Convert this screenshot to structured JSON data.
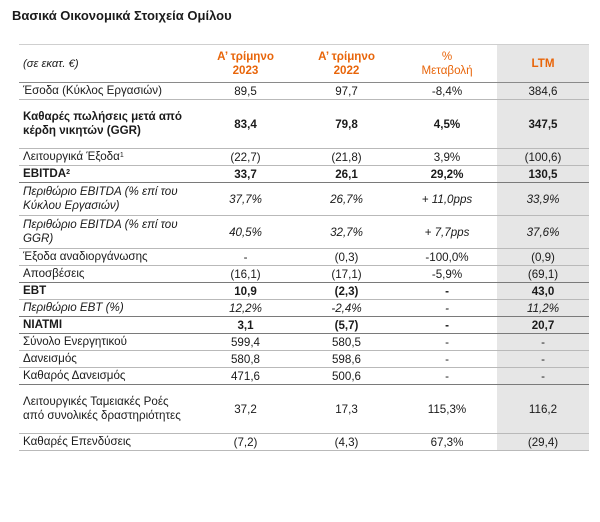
{
  "title": "Βασικά Οικονομικά Στοιχεία Ομίλου",
  "header": {
    "units": "(σε εκατ. €)",
    "col1_line1": "Α’ τρίμηνο",
    "col1_line2": "2023",
    "col2_line1": "Α’ τρίμηνο",
    "col2_line2": "2022",
    "col3_line1": "%",
    "col3_line2": "Μεταβολή",
    "col4": "LTM"
  },
  "rows": [
    {
      "label": "Έσοδα (Κύκλος Εργασιών)",
      "q1_2023": "89,5",
      "q1_2022": "97,7",
      "change": "-8,4%",
      "ltm": "384,6"
    },
    {
      "label": "Καθαρές πωλήσεις μετά από κέρδη νικητών (GGR)",
      "q1_2023": "83,4",
      "q1_2022": "79,8",
      "change": "4,5%",
      "ltm": "347,5"
    },
    {
      "label": "Λειτουργικά Έξοδα",
      "sup": "1",
      "q1_2023": "(22,7)",
      "q1_2022": "(21,8)",
      "change": "3,9%",
      "ltm": "(100,6)"
    },
    {
      "label": "EBITDA",
      "sup": "2",
      "q1_2023": "33,7",
      "q1_2022": "26,1",
      "change": "29,2%",
      "ltm": "130,5"
    },
    {
      "label": "Περιθώριο EBITDA (% επί του Κύκλου Εργασιών)",
      "q1_2023": "37,7%",
      "q1_2022": "26,7%",
      "change": "+ 11,0pps",
      "ltm": "33,9%"
    },
    {
      "label": "Περιθώριο EBITDA (% επί του GGR)",
      "q1_2023": "40,5%",
      "q1_2022": "32,7%",
      "change": "+ 7,7pps",
      "ltm": "37,6%"
    },
    {
      "label": "Έξοδα αναδιοργάνωσης",
      "q1_2023": "-",
      "q1_2022": "(0,3)",
      "change": "-100,0%",
      "ltm": "(0,9)"
    },
    {
      "label": "Αποσβέσεις",
      "q1_2023": "(16,1)",
      "q1_2022": "(17,1)",
      "change": "-5,9%",
      "ltm": "(69,1)"
    },
    {
      "label": "EBT",
      "q1_2023": "10,9",
      "q1_2022": "(2,3)",
      "change": "-",
      "ltm": "43,0"
    },
    {
      "label": "Περιθώριο EBT (%)",
      "q1_2023": "12,2%",
      "q1_2022": "-2,4%",
      "change": "-",
      "ltm": "11,2%"
    },
    {
      "label": "NIATMI",
      "q1_2023": "3,1",
      "q1_2022": "(5,7)",
      "change": "-",
      "ltm": "20,7"
    },
    {
      "label": "Σύνολο Ενεργητικού",
      "q1_2023": "599,4",
      "q1_2022": "580,5",
      "change": "-",
      "ltm": "-"
    },
    {
      "label": "Δανεισμός",
      "q1_2023": "580,8",
      "q1_2022": "598,6",
      "change": "-",
      "ltm": "-"
    },
    {
      "label": "Καθαρός Δανεισμός",
      "q1_2023": "471,6",
      "q1_2022": "500,6",
      "change": "-",
      "ltm": "-"
    },
    {
      "label": "Λειτουργικές Ταμειακές Ροές από συνολικές δραστηριότητες",
      "q1_2023": "37,2",
      "q1_2022": "17,3",
      "change": "115,3%",
      "ltm": "116,2"
    },
    {
      "label": "Καθαρές Επενδύσεις",
      "q1_2023": "(7,2)",
      "q1_2022": "(4,3)",
      "change": "67,3%",
      "ltm": "(29,4)"
    }
  ],
  "colors": {
    "accent": "#e8650a",
    "ltm_shade": "#e6e6e6"
  }
}
